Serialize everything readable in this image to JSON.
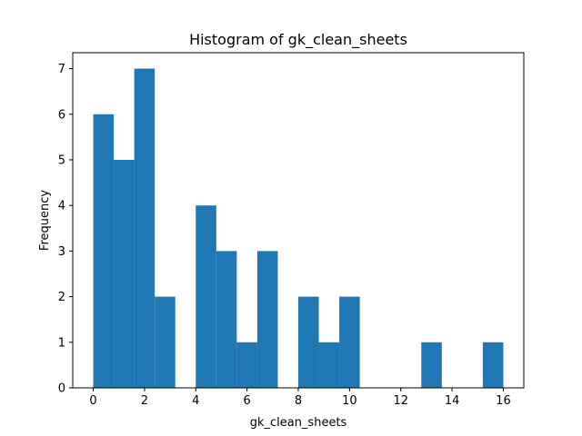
{
  "chart_data": {
    "type": "bar",
    "title": "Histogram of gk_clean_sheets",
    "xlabel": "gk_clean_sheets",
    "ylabel": "Frequency",
    "xlim": [
      -0.8,
      16.8
    ],
    "ylim": [
      0,
      7.35
    ],
    "bin_edges": [
      0.0,
      0.8,
      1.6,
      2.4,
      3.2,
      4.0,
      4.8,
      5.6,
      6.4,
      7.2,
      8.0,
      8.8,
      9.6,
      10.4,
      11.2,
      12.0,
      12.8,
      13.6,
      14.4,
      15.2,
      16.0
    ],
    "values": [
      6,
      5,
      7,
      2,
      0,
      4,
      3,
      1,
      3,
      0,
      2,
      1,
      2,
      0,
      0,
      0,
      1,
      0,
      0,
      1
    ],
    "x_ticks": [
      0,
      2,
      4,
      6,
      8,
      10,
      12,
      14,
      16
    ],
    "y_ticks": [
      0,
      1,
      2,
      3,
      4,
      5,
      6,
      7
    ],
    "bar_color": "#1f77b4",
    "grid": false,
    "legend": false
  }
}
